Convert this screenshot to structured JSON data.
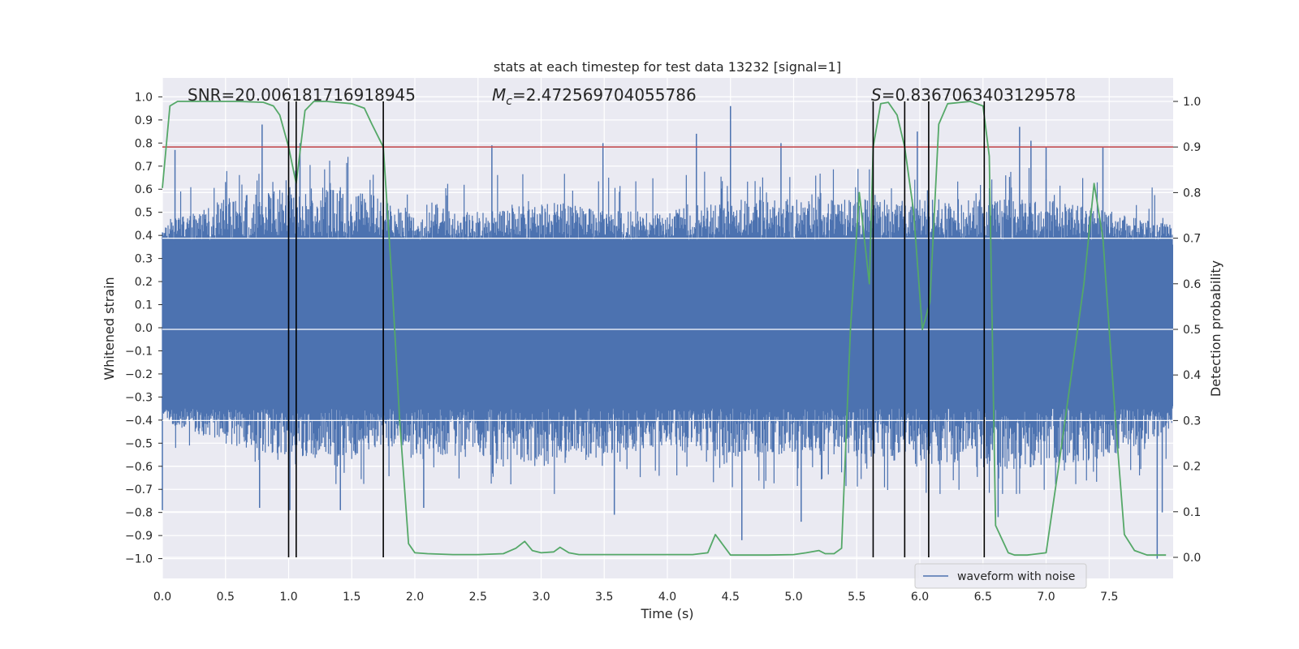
{
  "chart_data": {
    "type": "line",
    "title": "stats at each timestep for test data 13232 [signal=1]",
    "xlabel": "Time (s)",
    "ylabel_left": "Whitened strain",
    "ylabel_right": "Detection probability",
    "xlim": [
      0.0,
      8.0
    ],
    "ylim_left": [
      -1.1,
      1.05
    ],
    "ylim_right": [
      -0.05,
      1.035
    ],
    "xticks": [
      0.0,
      0.5,
      1.0,
      1.5,
      2.0,
      2.5,
      3.0,
      3.5,
      4.0,
      4.5,
      5.0,
      5.5,
      6.0,
      6.5,
      7.0,
      7.5
    ],
    "xtick_labels": [
      "0.0",
      "0.5",
      "1.0",
      "1.5",
      "2.0",
      "2.5",
      "3.0",
      "3.5",
      "4.0",
      "4.5",
      "5.0",
      "5.5",
      "6.0",
      "6.5",
      "7.0",
      "7.5"
    ],
    "yticks_left": [
      1.0,
      0.9,
      0.8,
      0.7,
      0.6,
      0.5,
      0.4,
      0.3,
      0.2,
      0.1,
      0.0,
      -0.1,
      -0.2,
      -0.3,
      -0.4,
      -0.5,
      -0.6,
      -0.7,
      -0.8,
      -0.9,
      -1.0
    ],
    "ytick_labels_left": [
      "1.0",
      "0.9",
      "0.8",
      "0.7",
      "0.6",
      "0.5",
      "0.4",
      "0.3",
      "0.2",
      "0.1",
      "0.0",
      "−0.1",
      "−0.2",
      "−0.3",
      "−0.4",
      "−0.5",
      "−0.6",
      "−0.7",
      "−0.8",
      "−0.9",
      "−1.0"
    ],
    "yticks_right": [
      1.0,
      0.9,
      0.8,
      0.7,
      0.6,
      0.5,
      0.4,
      0.3,
      0.2,
      0.1,
      0.0
    ],
    "ytick_labels_right": [
      "1.0",
      "0.9",
      "0.8",
      "0.7",
      "0.6",
      "0.5",
      "0.4",
      "0.3",
      "0.2",
      "0.1",
      "0.0"
    ],
    "grid": true,
    "annotations": {
      "snr": "SNR=20.006181716918945",
      "mc_symbol": "M",
      "mc_sub": "c",
      "mc_value": "=2.472569704055786",
      "s_symbol": "S",
      "s_value": "=0.8367063403129578"
    },
    "legend": {
      "placement": "lower-right",
      "entries": [
        "waveform with noise"
      ]
    },
    "colors": {
      "background": "#eaeaf2",
      "grid": "#ffffff",
      "waveform": "#4c72b0",
      "probability": "#55a868",
      "threshold": "#c44e52",
      "markers": "#000000"
    },
    "threshold_right": 0.9,
    "vertical_markers_x": [
      1.0,
      1.06,
      1.75,
      5.63,
      5.88,
      6.07,
      6.51
    ],
    "waveform": {
      "name": "waveform with noise",
      "axis": "left",
      "envelope_x": [
        0.0,
        0.5,
        1.0,
        1.5,
        1.75,
        2.0,
        2.5,
        3.0,
        3.5,
        4.0,
        4.5,
        5.0,
        5.5,
        6.0,
        6.5,
        7.0,
        7.5,
        8.0
      ],
      "envelope_upper": [
        0.45,
        0.55,
        0.6,
        0.6,
        0.55,
        0.5,
        0.5,
        0.55,
        0.5,
        0.5,
        0.55,
        0.55,
        0.55,
        0.55,
        0.55,
        0.55,
        0.5,
        0.45
      ],
      "envelope_lower": [
        -0.4,
        -0.5,
        -0.55,
        -0.55,
        -0.5,
        -0.55,
        -0.55,
        -0.6,
        -0.55,
        -0.5,
        -0.55,
        -0.55,
        -0.55,
        -0.6,
        -0.6,
        -0.6,
        -0.55,
        -0.45
      ],
      "peaks": [
        {
          "x": 0.79,
          "y": 0.88
        },
        {
          "x": 1.09,
          "y": 0.8
        },
        {
          "x": 2.61,
          "y": 0.79
        },
        {
          "x": 3.49,
          "y": 0.8
        },
        {
          "x": 4.23,
          "y": 0.84
        },
        {
          "x": 4.5,
          "y": 0.96
        },
        {
          "x": 4.9,
          "y": 0.8
        },
        {
          "x": 6.51,
          "y": 0.8
        },
        {
          "x": 6.79,
          "y": 0.87
        },
        {
          "x": 6.88,
          "y": 0.81
        },
        {
          "x": 7.0,
          "y": 0.78
        },
        {
          "x": 7.45,
          "y": 0.78
        },
        {
          "x": 0.1,
          "y": 0.77
        },
        {
          "x": 5.98,
          "y": 0.85
        }
      ],
      "troughs": [
        {
          "x": 0.0,
          "y": -0.79
        },
        {
          "x": 0.77,
          "y": -0.78
        },
        {
          "x": 1.01,
          "y": -0.79
        },
        {
          "x": 1.41,
          "y": -0.79
        },
        {
          "x": 2.07,
          "y": -0.78
        },
        {
          "x": 3.58,
          "y": -0.81
        },
        {
          "x": 4.59,
          "y": -0.92
        },
        {
          "x": 5.06,
          "y": -0.84
        },
        {
          "x": 6.62,
          "y": -0.82
        },
        {
          "x": 7.88,
          "y": -1.0
        },
        {
          "x": 7.92,
          "y": -0.8
        }
      ]
    },
    "probability": {
      "name": "",
      "axis": "right",
      "x": [
        0.0,
        0.06,
        0.12,
        0.2,
        0.4,
        0.6,
        0.8,
        0.88,
        0.93,
        1.0,
        1.06,
        1.13,
        1.2,
        1.3,
        1.5,
        1.6,
        1.66,
        1.75,
        1.82,
        1.88,
        1.95,
        2.0,
        2.1,
        2.3,
        2.5,
        2.7,
        2.8,
        2.87,
        2.93,
        3.0,
        3.1,
        3.15,
        3.22,
        3.3,
        3.5,
        3.8,
        4.0,
        4.2,
        4.32,
        4.38,
        4.5,
        4.8,
        5.0,
        5.1,
        5.2,
        5.25,
        5.32,
        5.38,
        5.45,
        5.52,
        5.6,
        5.63,
        5.69,
        5.75,
        5.82,
        5.88,
        5.95,
        6.02,
        6.08,
        6.15,
        6.22,
        6.4,
        6.5,
        6.55,
        6.6,
        6.7,
        6.75,
        6.85,
        7.0,
        7.1,
        7.2,
        7.3,
        7.38,
        7.45,
        7.55,
        7.62,
        7.7,
        7.8,
        7.95
      ],
      "y": [
        0.81,
        0.99,
        1.0,
        1.0,
        1.0,
        1.0,
        0.998,
        0.99,
        0.97,
        0.9,
        0.82,
        0.98,
        1.0,
        1.0,
        0.995,
        0.985,
        0.95,
        0.9,
        0.6,
        0.3,
        0.03,
        0.01,
        0.008,
        0.006,
        0.006,
        0.008,
        0.02,
        0.035,
        0.015,
        0.01,
        0.012,
        0.022,
        0.01,
        0.006,
        0.006,
        0.006,
        0.006,
        0.006,
        0.01,
        0.05,
        0.005,
        0.005,
        0.006,
        0.01,
        0.015,
        0.008,
        0.008,
        0.02,
        0.5,
        0.8,
        0.6,
        0.9,
        0.995,
        0.998,
        0.97,
        0.9,
        0.76,
        0.5,
        0.56,
        0.95,
        0.995,
        1.0,
        0.99,
        0.88,
        0.07,
        0.01,
        0.005,
        0.005,
        0.01,
        0.2,
        0.4,
        0.6,
        0.82,
        0.7,
        0.3,
        0.05,
        0.015,
        0.005,
        0.005
      ]
    }
  }
}
